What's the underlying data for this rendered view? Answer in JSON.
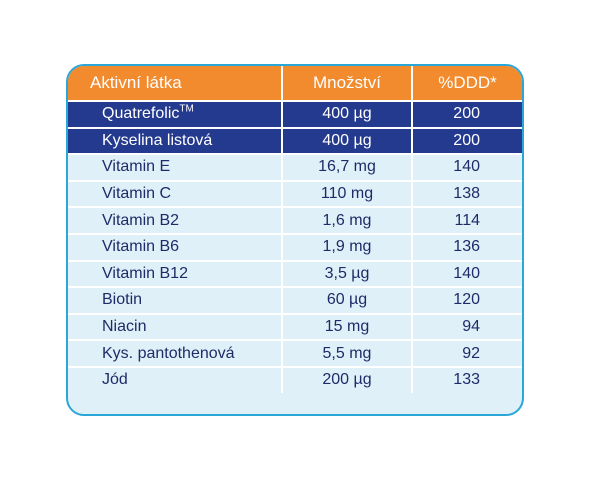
{
  "table": {
    "headers": {
      "name": "Aktivní látka",
      "amount": "Množství",
      "pct": "%DDD*"
    },
    "rows": [
      {
        "name": "Quatrefolic",
        "sup": "TM",
        "amount": "400 µg",
        "pct": "200",
        "highlight": true
      },
      {
        "name": "Kyselina listová",
        "amount": "400 µg",
        "pct": "200",
        "highlight": true
      },
      {
        "name": "Vitamin E",
        "amount": "16,7 mg",
        "pct": "140"
      },
      {
        "name": "Vitamin C",
        "amount": "110 mg",
        "pct": "138"
      },
      {
        "name": "Vitamin B2",
        "amount": "1,6 mg",
        "pct": "114"
      },
      {
        "name": "Vitamin B6",
        "amount": "1,9 mg",
        "pct": "136"
      },
      {
        "name": "Vitamin B12",
        "amount": "3,5 µg",
        "pct": "140"
      },
      {
        "name": "Biotin",
        "amount": "60 µg",
        "pct": "120"
      },
      {
        "name": "Niacin",
        "amount": "15 mg",
        "pct": "94"
      },
      {
        "name": "Kys. pantothenová",
        "amount": "5,5 mg",
        "pct": "92"
      },
      {
        "name": "Jód",
        "amount": "200 µg",
        "pct": "133"
      }
    ]
  },
  "colors": {
    "header": "#f28a2e",
    "highlight": "#243a8e",
    "row": "#dff0f8",
    "border": "#2aa7d8",
    "text": "#1e2b68"
  }
}
